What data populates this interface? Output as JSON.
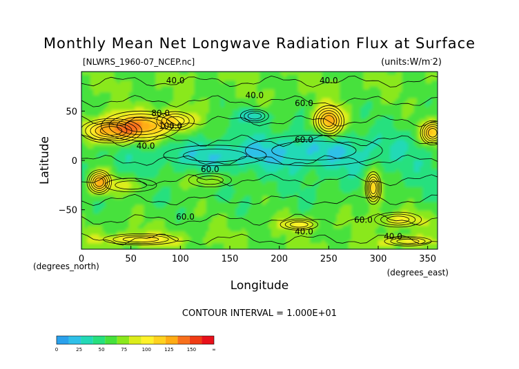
{
  "chart_data": {
    "type": "heatmap",
    "title": "Monthly Mean Net Longwave Radiation Flux at Surface",
    "source_file": "[NLWRS_1960-07_NCEP.nc]",
    "units": "(units:W/m^2)",
    "xlabel": "Longitude",
    "xunits": "(degrees_east)",
    "ylabel": "Latitude",
    "yunits": "(degrees_north)",
    "xlim": [
      0,
      360
    ],
    "ylim": [
      -90,
      90
    ],
    "x_ticks": [
      "0",
      "50",
      "100",
      "150",
      "200",
      "250",
      "300",
      "350"
    ],
    "y_ticks": [
      "50",
      "0",
      "-50"
    ],
    "contour_interval": "CONTOUR INTERVAL = 1.000E+01",
    "contour_labels": [
      {
        "text": "40.0",
        "lon": 95,
        "lat": 78
      },
      {
        "text": "40.0",
        "lon": 250,
        "lat": 78
      },
      {
        "text": "40.0",
        "lon": 175,
        "lat": 63
      },
      {
        "text": "60.0",
        "lon": 225,
        "lat": 55
      },
      {
        "text": "80.0",
        "lon": 80,
        "lat": 45
      },
      {
        "text": "100.0",
        "lon": 90,
        "lat": 32
      },
      {
        "text": "60.0",
        "lon": 225,
        "lat": 18
      },
      {
        "text": "40.0",
        "lon": 65,
        "lat": 12
      },
      {
        "text": "60.0",
        "lon": 130,
        "lat": -12
      },
      {
        "text": "60.0",
        "lon": 105,
        "lat": -60
      },
      {
        "text": "60.0",
        "lon": 285,
        "lat": -63
      },
      {
        "text": "40.0",
        "lon": 225,
        "lat": -75
      },
      {
        "text": "40.0",
        "lon": 315,
        "lat": -80
      }
    ],
    "colorbar": {
      "tick_labels": [
        "0",
        "25",
        "50",
        "75",
        "100",
        "125",
        "150",
        "∞"
      ],
      "colors": [
        "#2aa1ec",
        "#2fc0e8",
        "#23d9b6",
        "#27e07e",
        "#46e13c",
        "#8ae81c",
        "#dcec1a",
        "#fff22a",
        "#ffd21e",
        "#ffac14",
        "#f8701c",
        "#f03c14",
        "#e8101a"
      ]
    }
  }
}
